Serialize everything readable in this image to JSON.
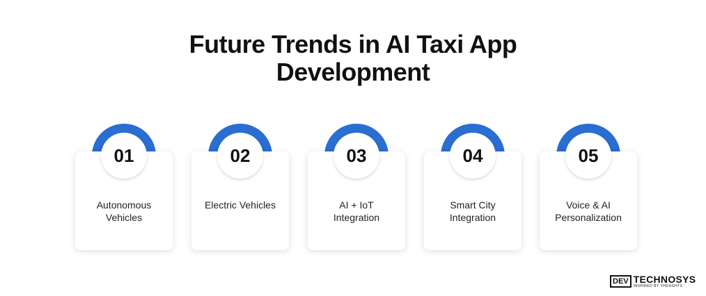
{
  "title": {
    "line1": "Future Trends in AI Taxi App",
    "line2": "Development"
  },
  "accent_color": "#2a6ed2",
  "cards": [
    {
      "number": "01",
      "label_line1": "Autonomous",
      "label_line2": "Vehicles"
    },
    {
      "number": "02",
      "label_line1": "Electric Vehicles",
      "label_line2": ""
    },
    {
      "number": "03",
      "label_line1": "AI + IoT",
      "label_line2": "Integration"
    },
    {
      "number": "04",
      "label_line1": "Smart City",
      "label_line2": "Integration"
    },
    {
      "number": "05",
      "label_line1": "Voice & AI",
      "label_line2": "Personalization"
    }
  ],
  "logo": {
    "mark": "DEV",
    "name": "TECHNOSYS",
    "tagline": "INSPIRED BY THOUGHTS"
  }
}
